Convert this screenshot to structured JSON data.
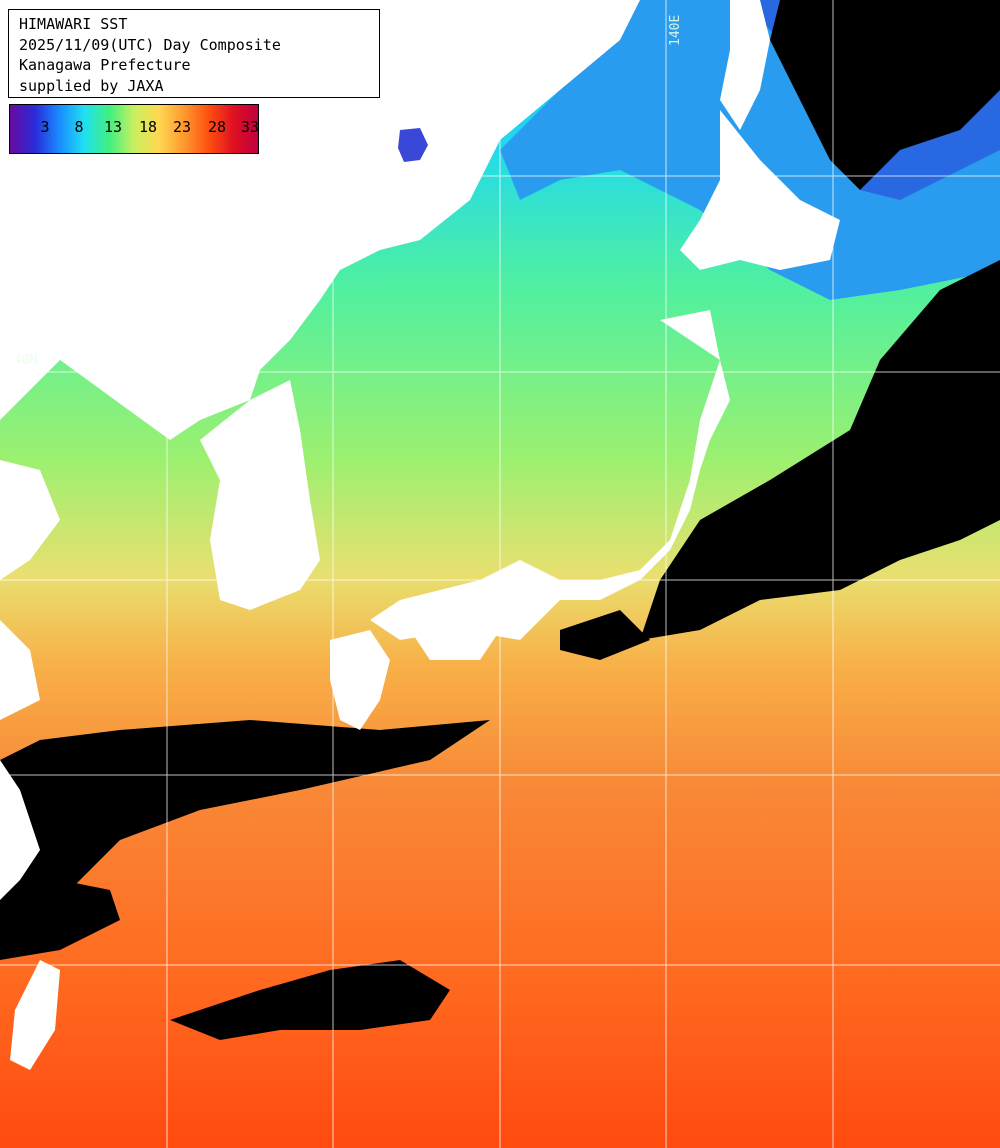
{
  "header": {
    "lines": [
      "HIMAWARI SST",
      "2025/11/09(UTC) Day Composite",
      "Kanagawa Prefecture",
      "supplied by JAXA"
    ]
  },
  "legend": {
    "ticks": [
      "3",
      "8",
      "13",
      "18",
      "23",
      "28",
      "33"
    ],
    "stops": [
      "#6a0a9e",
      "#2a2ad8",
      "#1a8cff",
      "#20e0f0",
      "#40f080",
      "#c8f060",
      "#ffd850",
      "#ff9a30",
      "#ff5010",
      "#e01020",
      "#c00040"
    ]
  },
  "grid": {
    "lon_label": "140E",
    "lat_label": "40N"
  },
  "colors": {
    "land": "#ffffff",
    "cloud": "#000000",
    "warm_sea": "#ff5a18",
    "mid_sea": "#f0a040",
    "cool_sea": "#60e880",
    "cold_sea": "#28c8f0",
    "grid_line": "#ffffff"
  }
}
